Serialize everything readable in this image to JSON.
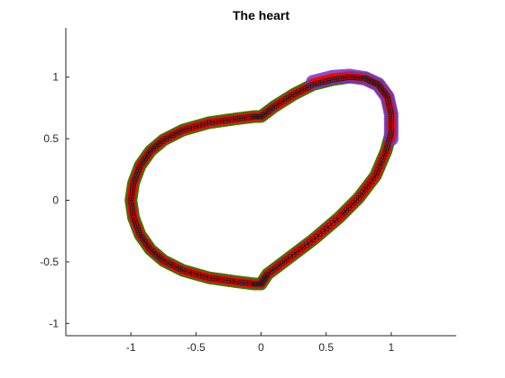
{
  "chart_data": {
    "type": "line",
    "title": "The heart",
    "xlabel": "",
    "ylabel": "",
    "xlim": [
      -1.5,
      1.5
    ],
    "ylim": [
      -1.1,
      1.4
    ],
    "grid": false,
    "xticks": [
      {
        "value": -1,
        "label": "-1"
      },
      {
        "value": -0.5,
        "label": "-0.5"
      },
      {
        "value": 0,
        "label": "0"
      },
      {
        "value": 0.5,
        "label": "0.5"
      },
      {
        "value": 1,
        "label": "1"
      }
    ],
    "yticks": [
      {
        "value": -1,
        "label": "-1"
      },
      {
        "value": -0.5,
        "label": "-0.5"
      },
      {
        "value": 0,
        "label": "0"
      },
      {
        "value": 0.5,
        "label": "0.5"
      },
      {
        "value": 1,
        "label": "1"
      }
    ],
    "series": [
      {
        "role": "outline",
        "color": "#1a1a1a",
        "x": [
          0.0,
          -0.05,
          -0.2,
          -0.4,
          -0.6,
          -0.75,
          -0.85,
          -0.93,
          -0.98,
          -1.0,
          -0.98,
          -0.93,
          -0.85,
          -0.75,
          -0.6,
          -0.4,
          -0.2,
          -0.05,
          0.0,
          0.05,
          0.2,
          0.4,
          0.6,
          0.75,
          0.88,
          0.96,
          1.0,
          1.0,
          0.97,
          0.9,
          0.8,
          0.68,
          0.55,
          0.4,
          0.25,
          0.1,
          0.0
        ],
        "y": [
          0.68,
          0.68,
          0.66,
          0.63,
          0.57,
          0.49,
          0.4,
          0.28,
          0.14,
          0.0,
          -0.14,
          -0.28,
          -0.4,
          -0.49,
          -0.57,
          -0.63,
          -0.66,
          -0.68,
          -0.68,
          -0.6,
          -0.48,
          -0.32,
          -0.14,
          0.02,
          0.2,
          0.4,
          0.55,
          0.7,
          0.84,
          0.94,
          0.99,
          1.0,
          0.98,
          0.94,
          0.86,
          0.76,
          0.68
        ],
        "band_color": "#ff0000",
        "band_edge_color": "#2e7d00",
        "marker": "square",
        "marker_color": "#222222"
      },
      {
        "role": "upper-right-band",
        "color": "#7b2fbe",
        "x": [
          0.4,
          0.55,
          0.68,
          0.8,
          0.9,
          0.97,
          1.0,
          1.0
        ],
        "y": [
          0.96,
          1.0,
          1.01,
          0.99,
          0.94,
          0.84,
          0.7,
          0.5
        ]
      }
    ]
  }
}
